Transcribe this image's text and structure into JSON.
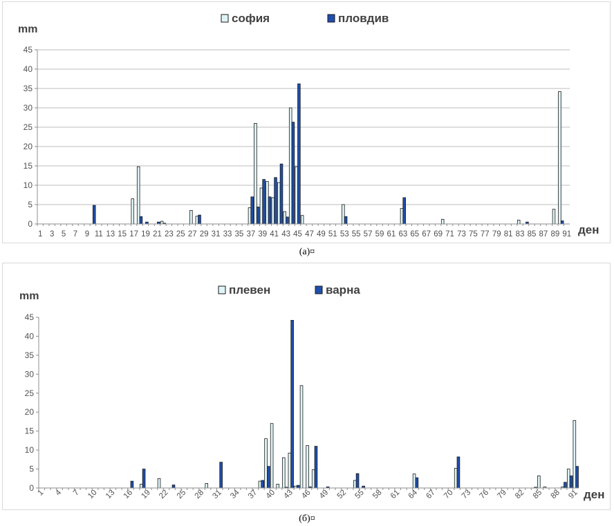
{
  "chart_data": [
    {
      "type": "bar",
      "caption": "(а)¤",
      "ylabel": "mm",
      "xlabel": "ден",
      "ylim": [
        0,
        45
      ],
      "yticks": [
        0,
        5,
        10,
        15,
        20,
        25,
        30,
        35,
        40,
        45
      ],
      "xtick_step": 2,
      "xtick_rotated": false,
      "grid": true,
      "legend_position": "top-center",
      "days": 91,
      "series": [
        {
          "name": "софия",
          "color": "#dff4f7",
          "points": [
            [
              17,
              6.5
            ],
            [
              18,
              14.8
            ],
            [
              22,
              0.7
            ],
            [
              27,
              3.5
            ],
            [
              28,
              2
            ],
            [
              37,
              4.2
            ],
            [
              38,
              26
            ],
            [
              39,
              9.3
            ],
            [
              40,
              11
            ],
            [
              41,
              6.8
            ],
            [
              42,
              10.7
            ],
            [
              43,
              3.2
            ],
            [
              44,
              30
            ],
            [
              45,
              14.8
            ],
            [
              46,
              2.2
            ],
            [
              53,
              5
            ],
            [
              63,
              4
            ],
            [
              70,
              1.2
            ],
            [
              83,
              1
            ],
            [
              89,
              3.8
            ],
            [
              90,
              34.2
            ]
          ]
        },
        {
          "name": "пловдив",
          "color": "#1f4fae",
          "points": [
            [
              10,
              4.8
            ],
            [
              18,
              1.9
            ],
            [
              19,
              0.5
            ],
            [
              21,
              0.5
            ],
            [
              22,
              0.2
            ],
            [
              28,
              2.3
            ],
            [
              37,
              7
            ],
            [
              38,
              4.4
            ],
            [
              39,
              11.5
            ],
            [
              40,
              7
            ],
            [
              41,
              12
            ],
            [
              42,
              15.5
            ],
            [
              43,
              1.8
            ],
            [
              44,
              26.3
            ],
            [
              45,
              36.2
            ],
            [
              53,
              1.9
            ],
            [
              63,
              6.8
            ],
            [
              84,
              0.5
            ],
            [
              90,
              0.8
            ]
          ]
        }
      ]
    },
    {
      "type": "bar",
      "caption": "(б)¤",
      "ylabel": "mm",
      "xlabel": "ден",
      "ylim": [
        0,
        45
      ],
      "yticks": [
        0,
        5,
        10,
        15,
        20,
        25,
        30,
        35,
        40,
        45
      ],
      "xtick_step": 3,
      "xtick_rotated": true,
      "grid": false,
      "legend_position": "top-center",
      "days": 91,
      "series": [
        {
          "name": "плевен",
          "color": "#dff4f7",
          "points": [
            [
              18,
              1
            ],
            [
              21,
              2.5
            ],
            [
              29,
              1.2
            ],
            [
              38,
              1.8
            ],
            [
              39,
              13
            ],
            [
              40,
              17
            ],
            [
              41,
              1
            ],
            [
              42,
              8
            ],
            [
              43,
              9.2
            ],
            [
              44,
              0.5
            ],
            [
              45,
              27
            ],
            [
              46,
              11.2
            ],
            [
              47,
              4.8
            ],
            [
              54,
              2
            ],
            [
              64,
              3.7
            ],
            [
              71,
              5.2
            ],
            [
              85,
              3.2
            ],
            [
              86,
              0.3
            ],
            [
              89,
              0.3
            ],
            [
              90,
              5
            ],
            [
              91,
              17.8
            ]
          ]
        },
        {
          "name": "варна",
          "color": "#1f4fae",
          "points": [
            [
              16,
              1.8
            ],
            [
              18,
              5
            ],
            [
              23,
              0.8
            ],
            [
              31,
              6.8
            ],
            [
              38,
              2
            ],
            [
              39,
              5.7
            ],
            [
              42,
              0.2
            ],
            [
              43,
              44.2
            ],
            [
              44,
              0.7
            ],
            [
              46,
              0.3
            ],
            [
              47,
              11
            ],
            [
              49,
              0.3
            ],
            [
              54,
              3.8
            ],
            [
              55,
              0.5
            ],
            [
              64,
              2.7
            ],
            [
              71,
              8.2
            ],
            [
              84,
              0.2
            ],
            [
              89,
              1.5
            ],
            [
              90,
              3.2
            ],
            [
              91,
              5.7
            ]
          ]
        }
      ]
    }
  ]
}
